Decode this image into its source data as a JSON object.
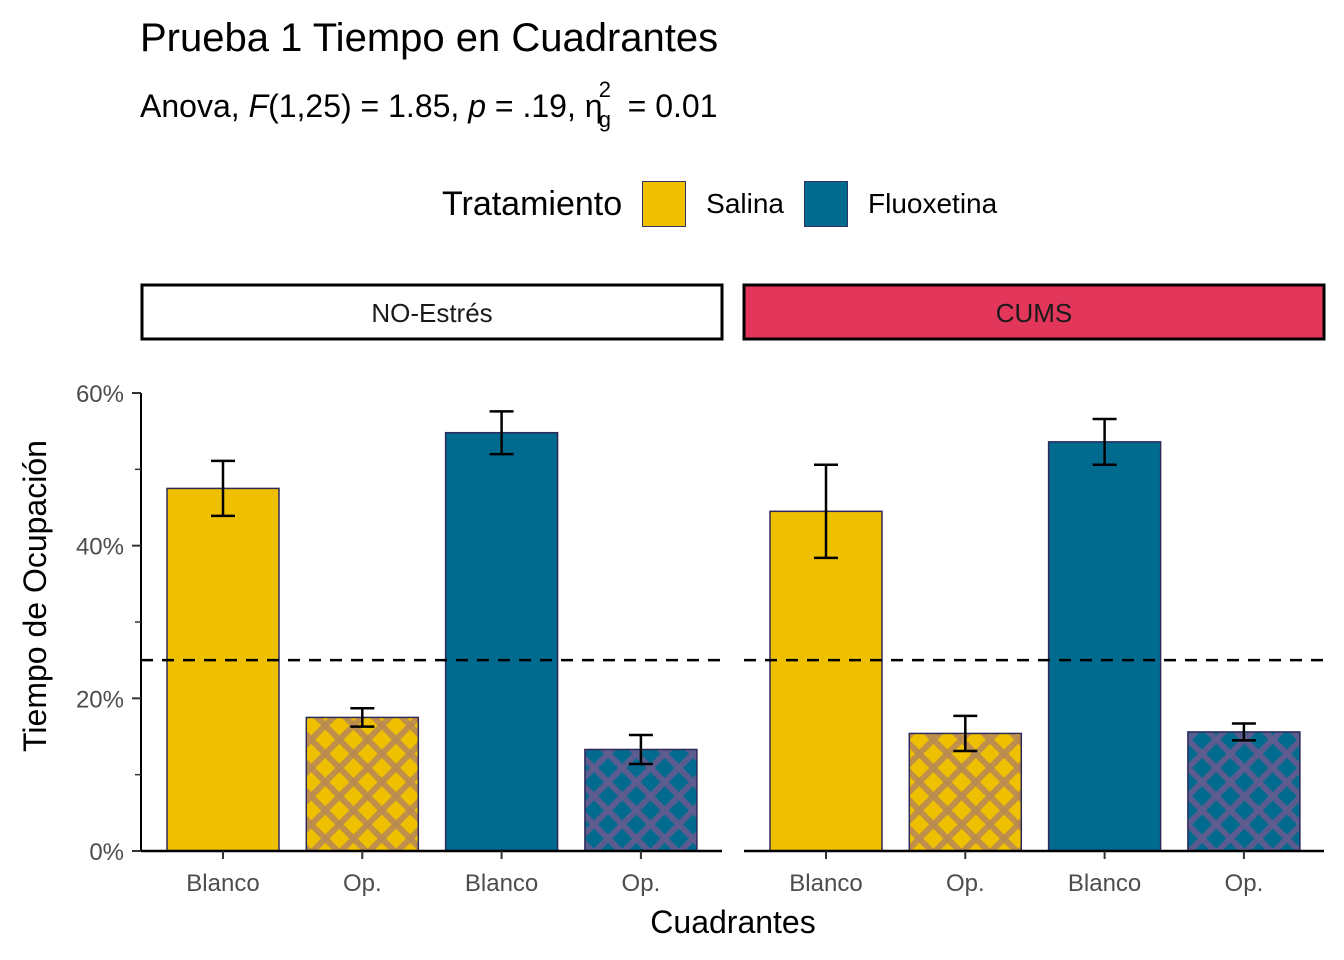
{
  "chart_data": {
    "type": "bar",
    "title": "Prueba 1 Tiempo en Cuadrantes",
    "subtitle": {
      "prefix": "Anova, ",
      "f_symbol": "F",
      "f_df": "(1,25) = 1.85, ",
      "p_symbol": "p",
      "p_value": " = .19, ",
      "eta_symbol": "η",
      "eta_sup": "2",
      "eta_sub": "g",
      "eta_value": " = 0.01"
    },
    "legend": {
      "title": "Tratamiento",
      "placement": "top",
      "items": [
        {
          "label": "Salina",
          "color": "#EFC000"
        },
        {
          "label": "Fluoxetina",
          "color": "#006B8F"
        }
      ]
    },
    "xlabel": "Cuadrantes",
    "ylabel": "Tiempo de Ocupación",
    "ylim": [
      0,
      60
    ],
    "yticks": [
      0,
      20,
      40,
      60
    ],
    "yticks_minor": [
      10,
      30,
      50
    ],
    "ytick_labels": [
      "0%",
      "20%",
      "40%",
      "60%"
    ],
    "reference_line": {
      "y": 25,
      "style": "dashed"
    },
    "categories": [
      "Blanco",
      "Op.",
      "Blanco",
      "Op."
    ],
    "bar_fills": [
      "Salina",
      "Salina",
      "Fluoxetina",
      "Fluoxetina"
    ],
    "bar_patterns": [
      "none",
      "crosshatch",
      "none",
      "crosshatch"
    ],
    "facets": [
      {
        "label": "NO-Estrés",
        "strip_color": "#FFFFFF",
        "values": [
          47.5,
          17.5,
          54.8,
          13.3
        ],
        "errors": [
          3.6,
          1.2,
          2.8,
          1.9
        ]
      },
      {
        "label": "CUMS",
        "strip_color": "#E2365B",
        "values": [
          44.5,
          15.4,
          53.6,
          15.6
        ],
        "errors": [
          6.1,
          2.3,
          3.0,
          1.1
        ]
      }
    ],
    "grid": false
  }
}
